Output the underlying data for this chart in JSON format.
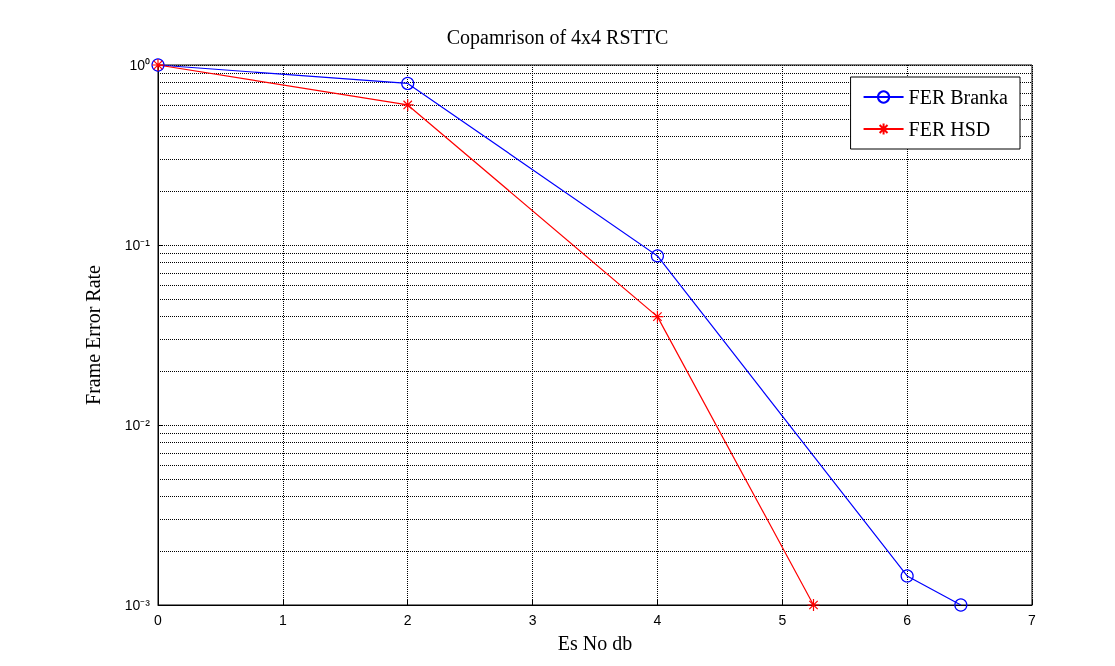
{
  "chart_data": {
    "type": "line",
    "title": "Copamrison of 4x4 RSTTC",
    "xlabel": "Es No db",
    "ylabel": "Frame Error Rate",
    "log": "y",
    "xlim": [
      0,
      7
    ],
    "xticks": [
      0,
      1,
      2,
      3,
      4,
      5,
      6,
      7
    ],
    "ylim": [
      0.001,
      1
    ],
    "yticks": [
      {
        "value": 0.001,
        "label": "10⁻³"
      },
      {
        "value": 0.01,
        "label": "10⁻²"
      },
      {
        "value": 0.1,
        "label": "10⁻¹"
      },
      {
        "value": 1,
        "label": "10⁰"
      }
    ],
    "grid": true,
    "legend": "top right",
    "line_style": "solid",
    "series": [
      {
        "name": "FER Branka",
        "color": "#0000ff",
        "marker": "circle",
        "x": [
          0,
          2,
          4,
          6,
          6.43
        ],
        "values": [
          1,
          0.79,
          0.087,
          0.00145,
          0.001
        ]
      },
      {
        "name": "FER HSD",
        "color": "#ff0000",
        "marker": "cross",
        "x": [
          0,
          2,
          4,
          5.25
        ],
        "values": [
          1,
          0.6,
          0.04,
          0.001
        ]
      }
    ]
  }
}
